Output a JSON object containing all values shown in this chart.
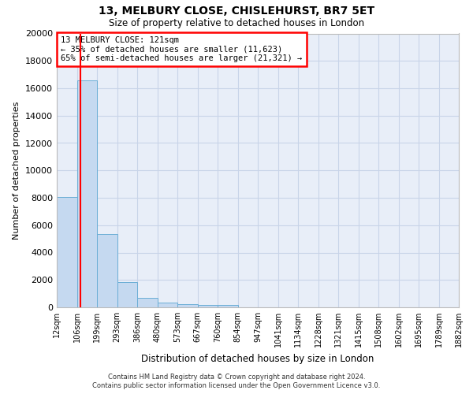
{
  "title1": "13, MELBURY CLOSE, CHISLEHURST, BR7 5ET",
  "title2": "Size of property relative to detached houses in London",
  "xlabel": "Distribution of detached houses by size in London",
  "ylabel": "Number of detached properties",
  "bar_values": [
    8050,
    16550,
    5350,
    1850,
    680,
    330,
    220,
    190,
    160,
    0,
    0,
    0,
    0,
    0,
    0,
    0,
    0,
    0,
    0,
    0
  ],
  "bin_edges": [
    12,
    106,
    199,
    293,
    386,
    480,
    573,
    667,
    760,
    854,
    947,
    1041,
    1134,
    1228,
    1321,
    1415,
    1508,
    1602,
    1695,
    1789,
    1882
  ],
  "tick_labels": [
    "12sqm",
    "106sqm",
    "199sqm",
    "293sqm",
    "386sqm",
    "480sqm",
    "573sqm",
    "667sqm",
    "760sqm",
    "854sqm",
    "947sqm",
    "1041sqm",
    "1134sqm",
    "1228sqm",
    "1321sqm",
    "1415sqm",
    "1508sqm",
    "1602sqm",
    "1695sqm",
    "1789sqm",
    "1882sqm"
  ],
  "bar_color": "#c5d9f0",
  "bar_edge_color": "#6baed6",
  "grid_color": "#c8d4e8",
  "bg_color": "#e8eef8",
  "red_line_x": 121,
  "annotation_title": "13 MELBURY CLOSE: 121sqm",
  "annotation_line1": "← 35% of detached houses are smaller (11,623)",
  "annotation_line2": "65% of semi-detached houses are larger (21,321) →",
  "ylim": [
    0,
    20000
  ],
  "yticks": [
    0,
    2000,
    4000,
    6000,
    8000,
    10000,
    12000,
    14000,
    16000,
    18000,
    20000
  ],
  "footer1": "Contains HM Land Registry data © Crown copyright and database right 2024.",
  "footer2": "Contains public sector information licensed under the Open Government Licence v3.0."
}
